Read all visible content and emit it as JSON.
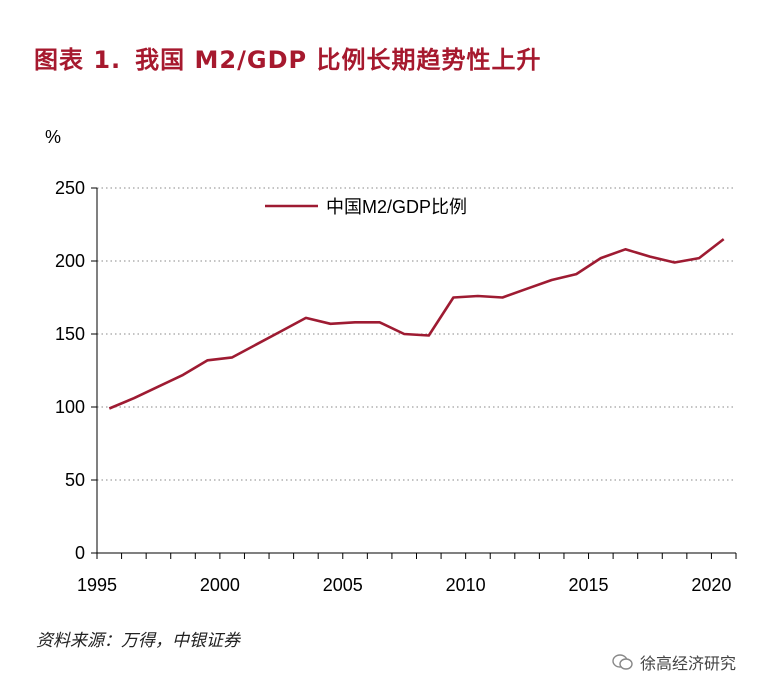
{
  "figure": {
    "label": "图表 1.",
    "title": "我国 M2/GDP 比例长期趋势性上升",
    "source": "资料来源：万得，中银证券",
    "watermark": "徐高经济研究"
  },
  "colors": {
    "title": "#a6192e",
    "series": "#9e1b32"
  },
  "chart_data": {
    "type": "line",
    "title": "我国 M2/GDP 比例长期趋势性上升",
    "ylabel": "%",
    "xlabel": "",
    "xlim": [
      1995,
      2021
    ],
    "ylim": [
      0,
      250
    ],
    "xticks": [
      1995,
      2000,
      2005,
      2010,
      2015,
      2020
    ],
    "yticks": [
      0,
      50,
      100,
      150,
      200,
      250
    ],
    "grid": "horizontal dotted",
    "legend_position": "top",
    "series": [
      {
        "name": "中国M2/GDP比例",
        "x": [
          1995.5,
          1996.5,
          1997.5,
          1998.5,
          1999.5,
          2000.5,
          2001.5,
          2002.5,
          2003.5,
          2004.5,
          2005.5,
          2006.5,
          2007.5,
          2008.5,
          2009.5,
          2010.5,
          2011.5,
          2012.5,
          2013.5,
          2014.5,
          2015.5,
          2016.5,
          2017.5,
          2018.5,
          2019.5,
          2020.5
        ],
        "values": [
          99,
          106,
          114,
          122,
          132,
          134,
          143,
          152,
          161,
          157,
          158,
          158,
          150,
          149,
          175,
          176,
          175,
          181,
          187,
          191,
          202,
          208,
          203,
          199,
          202,
          215
        ]
      }
    ]
  }
}
